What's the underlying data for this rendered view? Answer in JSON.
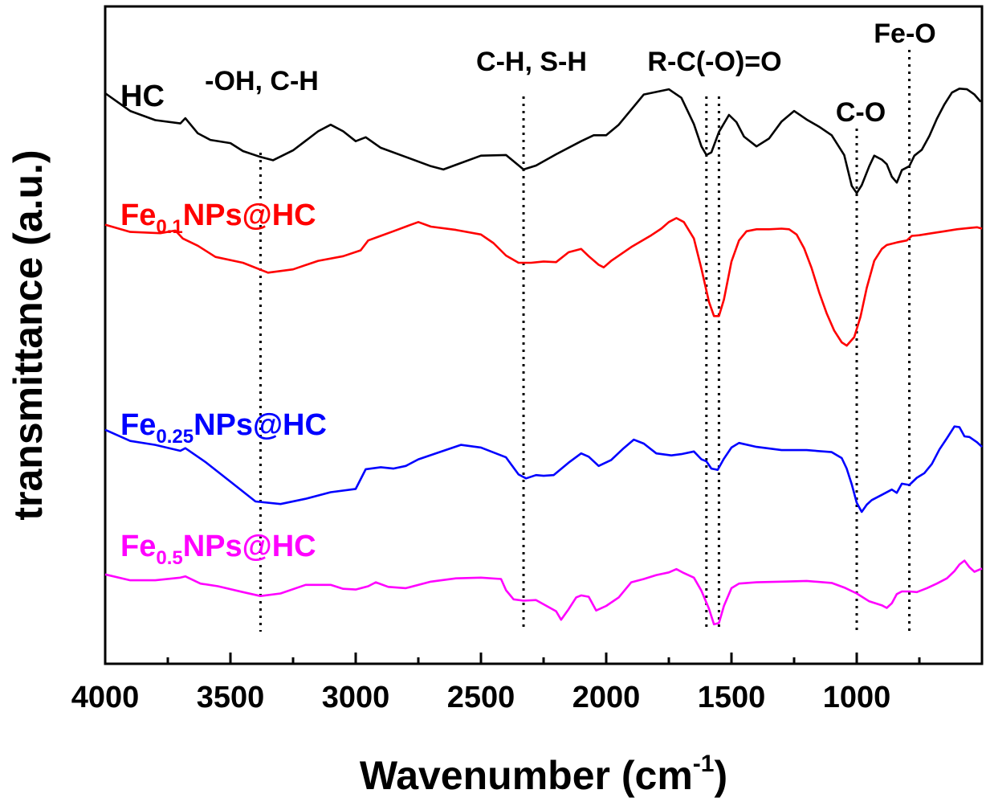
{
  "chart_data": {
    "type": "line",
    "title": "",
    "xlabel": "Wavenumber",
    "xlabel_unit": "(cm",
    "xlabel_unit_sup": "-1",
    "xlabel_unit_close": ")",
    "ylabel": "transmittance (a.u.)",
    "xlim": [
      4000,
      500
    ],
    "ylim": [
      0,
      100
    ],
    "x_ticks": [
      4000,
      3500,
      3000,
      2500,
      2000,
      1500,
      1000
    ],
    "x_tick_labels": [
      "4000",
      "3500",
      "3000",
      "2500",
      "2000",
      "1500",
      "1000"
    ],
    "grid": false,
    "series": [
      {
        "name": "HC",
        "label_main": "HC",
        "label_sub": "",
        "label_tail": "",
        "color": "#000000",
        "points": [
          [
            4000,
            86.8
          ],
          [
            3900,
            84.1
          ],
          [
            3800,
            82.7
          ],
          [
            3700,
            82.2
          ],
          [
            3680,
            83.0
          ],
          [
            3630,
            80.7
          ],
          [
            3580,
            79.7
          ],
          [
            3500,
            79.2
          ],
          [
            3450,
            78.0
          ],
          [
            3380,
            77.1
          ],
          [
            3330,
            76.6
          ],
          [
            3250,
            78.1
          ],
          [
            3150,
            81.0
          ],
          [
            3100,
            82.0
          ],
          [
            3050,
            81.0
          ],
          [
            3000,
            79.5
          ],
          [
            2960,
            80.1
          ],
          [
            2900,
            78.5
          ],
          [
            2800,
            77.1
          ],
          [
            2700,
            75.7
          ],
          [
            2650,
            75.2
          ],
          [
            2600,
            75.9
          ],
          [
            2500,
            77.3
          ],
          [
            2400,
            77.4
          ],
          [
            2330,
            75.2
          ],
          [
            2280,
            75.8
          ],
          [
            2200,
            77.5
          ],
          [
            2100,
            79.5
          ],
          [
            2050,
            80.4
          ],
          [
            2000,
            80.4
          ],
          [
            1950,
            82.0
          ],
          [
            1850,
            86.6
          ],
          [
            1750,
            87.4
          ],
          [
            1700,
            86.1
          ],
          [
            1650,
            82.1
          ],
          [
            1620,
            78.7
          ],
          [
            1600,
            77.4
          ],
          [
            1580,
            77.8
          ],
          [
            1550,
            80.9
          ],
          [
            1510,
            83.5
          ],
          [
            1480,
            82.4
          ],
          [
            1450,
            80.2
          ],
          [
            1400,
            78.7
          ],
          [
            1350,
            79.9
          ],
          [
            1300,
            82.5
          ],
          [
            1250,
            84.1
          ],
          [
            1200,
            82.8
          ],
          [
            1150,
            81.7
          ],
          [
            1100,
            80.4
          ],
          [
            1050,
            77.4
          ],
          [
            1020,
            72.7
          ],
          [
            1000,
            71.6
          ],
          [
            980,
            72.8
          ],
          [
            950,
            75.7
          ],
          [
            930,
            77.3
          ],
          [
            900,
            76.7
          ],
          [
            880,
            76.0
          ],
          [
            860,
            74.1
          ],
          [
            840,
            73.2
          ],
          [
            820,
            75.1
          ],
          [
            790,
            75.7
          ],
          [
            770,
            77.3
          ],
          [
            740,
            78.2
          ],
          [
            710,
            80.3
          ],
          [
            680,
            82.9
          ],
          [
            650,
            85.1
          ],
          [
            620,
            86.9
          ],
          [
            590,
            87.5
          ],
          [
            560,
            87.4
          ],
          [
            530,
            86.6
          ],
          [
            505,
            85.5
          ]
        ]
      },
      {
        "name": "Fe0.1NPs@HC",
        "label_main": "Fe",
        "label_sub": "0.1",
        "label_tail": "NPs@HC",
        "color": "#ff0000",
        "points": [
          [
            4000,
            66.8
          ],
          [
            3900,
            65.7
          ],
          [
            3780,
            65.5
          ],
          [
            3720,
            65.9
          ],
          [
            3690,
            64.7
          ],
          [
            3630,
            63.6
          ],
          [
            3560,
            61.9
          ],
          [
            3450,
            61.0
          ],
          [
            3350,
            59.5
          ],
          [
            3250,
            60.0
          ],
          [
            3150,
            61.3
          ],
          [
            3050,
            62.0
          ],
          [
            2980,
            62.9
          ],
          [
            2950,
            64.4
          ],
          [
            2900,
            65.1
          ],
          [
            2850,
            65.8
          ],
          [
            2800,
            66.5
          ],
          [
            2750,
            67.2
          ],
          [
            2700,
            66.5
          ],
          [
            2600,
            66.0
          ],
          [
            2500,
            65.3
          ],
          [
            2450,
            64.0
          ],
          [
            2400,
            62.1
          ],
          [
            2350,
            61.0
          ],
          [
            2300,
            61.0
          ],
          [
            2250,
            61.2
          ],
          [
            2200,
            61.1
          ],
          [
            2150,
            62.6
          ],
          [
            2100,
            63.1
          ],
          [
            2070,
            62.0
          ],
          [
            2030,
            60.7
          ],
          [
            2010,
            60.3
          ],
          [
            1980,
            61.3
          ],
          [
            1900,
            63.4
          ],
          [
            1820,
            65.2
          ],
          [
            1780,
            66.2
          ],
          [
            1750,
            67.2
          ],
          [
            1720,
            67.8
          ],
          [
            1690,
            67.2
          ],
          [
            1650,
            64.7
          ],
          [
            1620,
            60.1
          ],
          [
            1590,
            55.1
          ],
          [
            1570,
            52.9
          ],
          [
            1550,
            52.9
          ],
          [
            1530,
            55.4
          ],
          [
            1500,
            61.2
          ],
          [
            1470,
            64.4
          ],
          [
            1440,
            65.8
          ],
          [
            1400,
            66.1
          ],
          [
            1350,
            66.1
          ],
          [
            1300,
            66.2
          ],
          [
            1270,
            66.1
          ],
          [
            1240,
            65.3
          ],
          [
            1210,
            63.2
          ],
          [
            1180,
            60.2
          ],
          [
            1150,
            56.5
          ],
          [
            1120,
            53.3
          ],
          [
            1090,
            50.7
          ],
          [
            1060,
            48.9
          ],
          [
            1040,
            48.4
          ],
          [
            1010,
            49.7
          ],
          [
            985,
            52.8
          ],
          [
            960,
            57.2
          ],
          [
            930,
            61.3
          ],
          [
            900,
            63.1
          ],
          [
            880,
            63.7
          ],
          [
            840,
            64.1
          ],
          [
            800,
            64.4
          ],
          [
            780,
            65.1
          ],
          [
            750,
            65.2
          ],
          [
            700,
            65.5
          ],
          [
            650,
            65.8
          ],
          [
            600,
            66.1
          ],
          [
            550,
            66.3
          ],
          [
            520,
            66.4
          ],
          [
            500,
            66.2
          ]
        ]
      },
      {
        "name": "Fe0.25NPs@HC",
        "label_main": "Fe",
        "label_sub": "0.25",
        "label_tail": "NPs@HC",
        "color": "#0000ff",
        "points": [
          [
            4000,
            35.6
          ],
          [
            3900,
            33.9
          ],
          [
            3800,
            33.3
          ],
          [
            3700,
            32.4
          ],
          [
            3680,
            32.8
          ],
          [
            3600,
            30.7
          ],
          [
            3500,
            27.7
          ],
          [
            3400,
            24.7
          ],
          [
            3300,
            24.3
          ],
          [
            3200,
            25.1
          ],
          [
            3100,
            26.1
          ],
          [
            3000,
            26.6
          ],
          [
            2960,
            29.6
          ],
          [
            2900,
            29.9
          ],
          [
            2850,
            29.7
          ],
          [
            2800,
            30.1
          ],
          [
            2750,
            31.1
          ],
          [
            2650,
            32.4
          ],
          [
            2580,
            33.3
          ],
          [
            2500,
            32.9
          ],
          [
            2400,
            31.4
          ],
          [
            2350,
            28.8
          ],
          [
            2320,
            28.2
          ],
          [
            2280,
            28.7
          ],
          [
            2250,
            28.6
          ],
          [
            2210,
            28.7
          ],
          [
            2150,
            30.6
          ],
          [
            2100,
            32.0
          ],
          [
            2070,
            31.5
          ],
          [
            2030,
            30.1
          ],
          [
            1980,
            31.0
          ],
          [
            1930,
            32.8
          ],
          [
            1890,
            34.1
          ],
          [
            1850,
            33.5
          ],
          [
            1800,
            32.0
          ],
          [
            1740,
            31.7
          ],
          [
            1700,
            31.9
          ],
          [
            1650,
            32.3
          ],
          [
            1620,
            31.1
          ],
          [
            1600,
            30.8
          ],
          [
            1580,
            29.7
          ],
          [
            1555,
            29.5
          ],
          [
            1530,
            31.2
          ],
          [
            1500,
            32.9
          ],
          [
            1470,
            33.6
          ],
          [
            1400,
            33.0
          ],
          [
            1300,
            32.5
          ],
          [
            1200,
            32.5
          ],
          [
            1100,
            32.2
          ],
          [
            1060,
            31.3
          ],
          [
            1040,
            29.7
          ],
          [
            1020,
            27.3
          ],
          [
            1000,
            24.5
          ],
          [
            980,
            23.1
          ],
          [
            960,
            24.2
          ],
          [
            940,
            24.9
          ],
          [
            900,
            25.7
          ],
          [
            860,
            26.5
          ],
          [
            840,
            26.0
          ],
          [
            820,
            27.4
          ],
          [
            790,
            27.2
          ],
          [
            760,
            28.3
          ],
          [
            730,
            29.0
          ],
          [
            700,
            30.4
          ],
          [
            670,
            32.6
          ],
          [
            640,
            34.3
          ],
          [
            610,
            36.1
          ],
          [
            590,
            36.0
          ],
          [
            570,
            34.6
          ],
          [
            550,
            34.5
          ],
          [
            520,
            33.7
          ],
          [
            500,
            33.0
          ]
        ]
      },
      {
        "name": "Fe0.5NPs@HC",
        "label_main": "Fe",
        "label_sub": "0.5",
        "label_tail": "NPs@HC",
        "color": "#ff00ff",
        "points": [
          [
            4000,
            13.6
          ],
          [
            3900,
            12.7
          ],
          [
            3800,
            12.7
          ],
          [
            3700,
            13.1
          ],
          [
            3680,
            13.3
          ],
          [
            3620,
            12.2
          ],
          [
            3550,
            11.8
          ],
          [
            3450,
            10.9
          ],
          [
            3380,
            10.3
          ],
          [
            3300,
            10.7
          ],
          [
            3200,
            12.0
          ],
          [
            3100,
            12.0
          ],
          [
            3050,
            11.4
          ],
          [
            3000,
            11.3
          ],
          [
            2950,
            11.8
          ],
          [
            2920,
            12.4
          ],
          [
            2870,
            11.7
          ],
          [
            2800,
            11.5
          ],
          [
            2700,
            12.5
          ],
          [
            2600,
            13.0
          ],
          [
            2500,
            13.1
          ],
          [
            2420,
            12.9
          ],
          [
            2400,
            11.2
          ],
          [
            2370,
            9.8
          ],
          [
            2330,
            9.6
          ],
          [
            2280,
            9.7
          ],
          [
            2200,
            8.0
          ],
          [
            2180,
            6.7
          ],
          [
            2150,
            8.3
          ],
          [
            2120,
            10.1
          ],
          [
            2100,
            10.4
          ],
          [
            2070,
            10.2
          ],
          [
            2040,
            8.1
          ],
          [
            2000,
            8.8
          ],
          [
            1950,
            10.1
          ],
          [
            1900,
            12.4
          ],
          [
            1850,
            12.9
          ],
          [
            1800,
            13.5
          ],
          [
            1750,
            13.9
          ],
          [
            1720,
            14.4
          ],
          [
            1690,
            13.8
          ],
          [
            1650,
            13.1
          ],
          [
            1620,
            11.1
          ],
          [
            1590,
            8.4
          ],
          [
            1570,
            6.0
          ],
          [
            1550,
            6.2
          ],
          [
            1530,
            8.8
          ],
          [
            1500,
            11.5
          ],
          [
            1470,
            12.2
          ],
          [
            1400,
            12.4
          ],
          [
            1300,
            12.5
          ],
          [
            1200,
            12.6
          ],
          [
            1100,
            12.3
          ],
          [
            1050,
            11.6
          ],
          [
            1000,
            10.7
          ],
          [
            950,
            9.5
          ],
          [
            900,
            8.9
          ],
          [
            880,
            8.5
          ],
          [
            860,
            9.2
          ],
          [
            840,
            10.6
          ],
          [
            820,
            11.0
          ],
          [
            790,
            11.0
          ],
          [
            760,
            10.9
          ],
          [
            720,
            11.5
          ],
          [
            680,
            12.2
          ],
          [
            640,
            13.0
          ],
          [
            610,
            14.1
          ],
          [
            590,
            15.1
          ],
          [
            570,
            15.7
          ],
          [
            550,
            14.7
          ],
          [
            530,
            14.0
          ],
          [
            500,
            14.5
          ]
        ]
      }
    ],
    "reference_lines": [
      {
        "x": 3380,
        "label": "-OH, C-H"
      },
      {
        "x": 2330,
        "label": "C-H, S-H"
      },
      {
        "x": 1600,
        "label": ""
      },
      {
        "x": 1550,
        "label": "R-C(-O)=O"
      },
      {
        "x": 1000,
        "label": "C-O"
      },
      {
        "x": 790,
        "label": "Fe-O"
      }
    ]
  }
}
